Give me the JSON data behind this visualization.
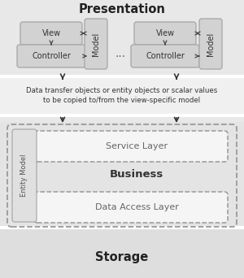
{
  "bg_top": "#e8e8e8",
  "bg_mid": "#f2f2f2",
  "bg_biz": "#e4e4e4",
  "bg_stor": "#d8d8d8",
  "box_fc": "#d2d2d2",
  "box_ec": "#aaaaaa",
  "entity_fc": "#e0e0e0",
  "entity_ec": "#aaaaaa",
  "layer_fc": "#f5f5f5",
  "layer_ec": "#999999",
  "outer_ec": "#999999",
  "arrow_color": "#444444",
  "text_dark": "#222222",
  "text_mid": "#555555",
  "sep_color": "#ffffff",
  "pres_title": "Presentation",
  "biz_title": "Business",
  "stor_title": "Storage",
  "ann_l1a": "Data transfer objects ",
  "ann_l1b": "or",
  "ann_l1c": " entity objects ",
  "ann_l1d": "or",
  "ann_l1e": " scalar values",
  "ann_l2": "to be copied to/from the view-specific model",
  "view_label": "View",
  "ctrl_label": "Controller",
  "model_label": "Model",
  "entity_label": "Entity Model",
  "svc_label": "Service Layer",
  "dal_label": "Data Access Layer",
  "dots_label": "..."
}
